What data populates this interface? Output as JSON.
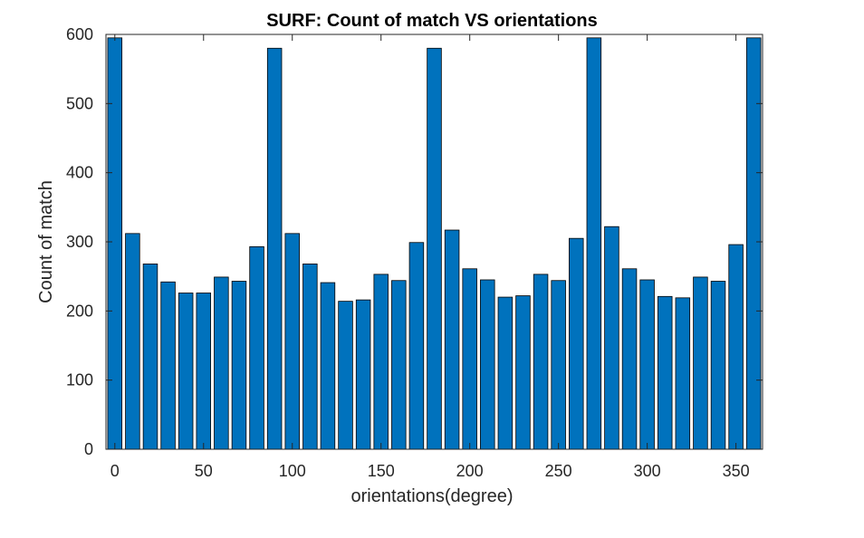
{
  "chart_data": {
    "type": "bar",
    "title": "SURF: Count of match VS orientations",
    "xlabel": "orientations(degree)",
    "ylabel": "Count of match",
    "x": [
      0,
      10,
      20,
      30,
      40,
      50,
      60,
      70,
      80,
      90,
      100,
      110,
      120,
      130,
      140,
      150,
      160,
      170,
      180,
      190,
      200,
      210,
      220,
      230,
      240,
      250,
      260,
      270,
      280,
      290,
      300,
      310,
      320,
      330,
      340,
      350,
      360
    ],
    "values": [
      595,
      312,
      268,
      242,
      226,
      226,
      249,
      243,
      293,
      580,
      312,
      268,
      241,
      214,
      216,
      253,
      244,
      299,
      580,
      317,
      261,
      245,
      220,
      222,
      253,
      244,
      305,
      595,
      322,
      261,
      245,
      221,
      219,
      249,
      243,
      296,
      595
    ],
    "xlim": [
      -5,
      365
    ],
    "ylim": [
      0,
      600
    ],
    "xticks": [
      0,
      50,
      100,
      150,
      200,
      250,
      300,
      350
    ],
    "yticks": [
      0,
      100,
      200,
      300,
      400,
      500,
      600
    ],
    "grid": false,
    "bar_color": "#0072BD",
    "edge_color": "#000000"
  }
}
